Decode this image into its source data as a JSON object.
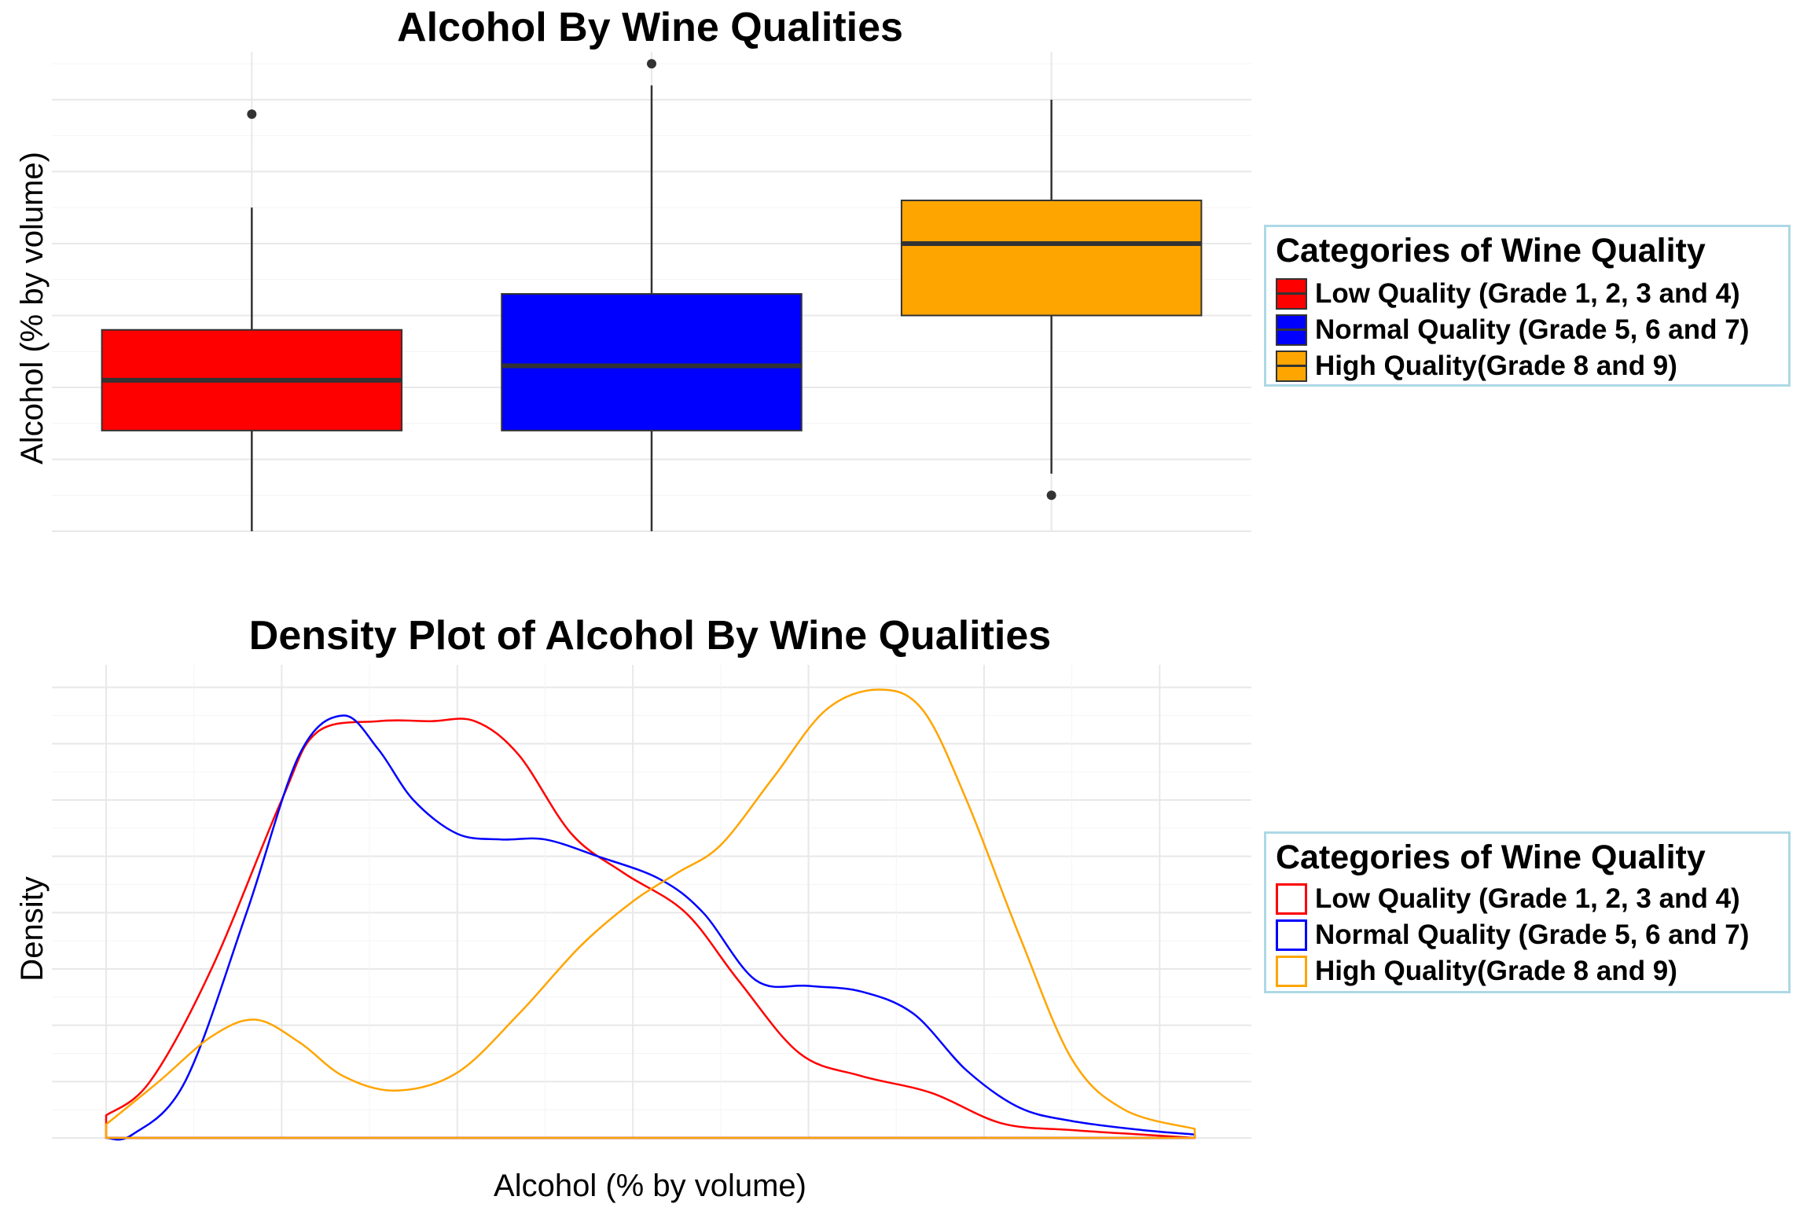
{
  "chart_data": [
    {
      "type": "box",
      "title": "Alcohol By Wine Qualities",
      "ylabel": "Alcohol (% by volume)",
      "ylim": [
        8.0,
        14.6
      ],
      "grid": true,
      "categories": [
        "Low Quality (Grade 1, 2, 3 and 4)",
        "Normal Quality (Grade 5, 6 and 7)",
        "High Quality(Grade 8 and 9)"
      ],
      "boxes": [
        {
          "min": 8.0,
          "q1": 9.4,
          "median": 10.1,
          "q3": 10.8,
          "max": 12.5,
          "outliers": [
            13.8
          ]
        },
        {
          "min": 8.0,
          "q1": 9.4,
          "median": 10.3,
          "q3": 11.3,
          "max": 14.2,
          "outliers": [
            14.5
          ]
        },
        {
          "min": 8.8,
          "q1": 11.0,
          "median": 12.0,
          "q3": 12.6,
          "max": 14.0,
          "outliers": [
            8.5
          ]
        }
      ],
      "colors": [
        "#ff0000",
        "#0000ff",
        "#ffa500"
      ],
      "legend": {
        "title": "Categories of Wine Quality",
        "position": "right"
      }
    },
    {
      "type": "density",
      "title": "Density Plot of Alcohol By Wine Qualities",
      "xlabel": "Alcohol (% by volume)",
      "ylabel": "Density",
      "xlim": [
        8.0,
        14.2
      ],
      "ylim": [
        0,
        0.42
      ],
      "grid": true,
      "series": [
        {
          "name": "Low Quality (Grade 1, 2, 3 and 4)",
          "color": "#ff0000",
          "points": [
            [
              8.0,
              0.02
            ],
            [
              8.25,
              0.05
            ],
            [
              8.6,
              0.15
            ],
            [
              9.0,
              0.3
            ],
            [
              9.2,
              0.36
            ],
            [
              9.55,
              0.37
            ],
            [
              9.85,
              0.37
            ],
            [
              10.1,
              0.37
            ],
            [
              10.35,
              0.34
            ],
            [
              10.65,
              0.27
            ],
            [
              10.95,
              0.235
            ],
            [
              11.3,
              0.2
            ],
            [
              11.6,
              0.14
            ],
            [
              11.95,
              0.075
            ],
            [
              12.3,
              0.055
            ],
            [
              12.7,
              0.04
            ],
            [
              13.1,
              0.013
            ],
            [
              13.5,
              0.007
            ],
            [
              13.9,
              0.003
            ],
            [
              14.2,
              0.0
            ]
          ]
        },
        {
          "name": "Normal Quality (Grade 5, 6 and 7)",
          "color": "#0000ff",
          "points": [
            [
              8.0,
              0.0
            ],
            [
              8.15,
              0.003
            ],
            [
              8.45,
              0.05
            ],
            [
              8.8,
              0.2
            ],
            [
              9.1,
              0.34
            ],
            [
              9.35,
              0.375
            ],
            [
              9.55,
              0.345
            ],
            [
              9.75,
              0.3
            ],
            [
              10.0,
              0.27
            ],
            [
              10.25,
              0.265
            ],
            [
              10.5,
              0.265
            ],
            [
              10.8,
              0.25
            ],
            [
              11.15,
              0.23
            ],
            [
              11.4,
              0.2
            ],
            [
              11.7,
              0.14
            ],
            [
              12.0,
              0.135
            ],
            [
              12.3,
              0.13
            ],
            [
              12.6,
              0.11
            ],
            [
              12.9,
              0.06
            ],
            [
              13.2,
              0.027
            ],
            [
              13.5,
              0.015
            ],
            [
              13.9,
              0.007
            ],
            [
              14.2,
              0.003
            ]
          ]
        },
        {
          "name": "High Quality(Grade 8 and 9)",
          "color": "#ffa500",
          "points": [
            [
              8.0,
              0.012
            ],
            [
              8.3,
              0.05
            ],
            [
              8.6,
              0.09
            ],
            [
              8.85,
              0.105
            ],
            [
              9.1,
              0.085
            ],
            [
              9.35,
              0.055
            ],
            [
              9.65,
              0.042
            ],
            [
              10.0,
              0.058
            ],
            [
              10.35,
              0.11
            ],
            [
              10.7,
              0.17
            ],
            [
              11.0,
              0.21
            ],
            [
              11.25,
              0.235
            ],
            [
              11.5,
              0.26
            ],
            [
              11.8,
              0.32
            ],
            [
              12.1,
              0.38
            ],
            [
              12.4,
              0.398
            ],
            [
              12.65,
              0.38
            ],
            [
              12.9,
              0.3
            ],
            [
              13.2,
              0.18
            ],
            [
              13.5,
              0.07
            ],
            [
              13.8,
              0.025
            ],
            [
              14.2,
              0.008
            ]
          ]
        }
      ],
      "legend": {
        "title": "Categories of Wine Quality",
        "position": "right"
      }
    }
  ]
}
